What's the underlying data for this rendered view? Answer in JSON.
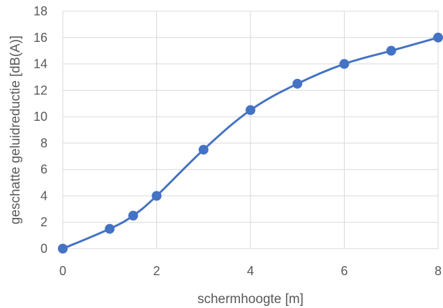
{
  "chart_data": {
    "type": "scatter",
    "title": "",
    "xlabel": "schermhoogte [m]",
    "ylabel": "geschatte geluidreductie [dB(A)]",
    "xlim": [
      0,
      8
    ],
    "ylim": [
      0,
      18
    ],
    "xticks": [
      "0",
      "2",
      "4",
      "6",
      "8"
    ],
    "yticks": [
      "0",
      "2",
      "4",
      "6",
      "8",
      "10",
      "12",
      "14",
      "16",
      "18"
    ],
    "grid": true,
    "legend": "none",
    "series": [
      {
        "x": [
          0,
          1,
          1.5,
          2,
          3,
          4,
          5,
          6,
          7,
          8
        ],
        "y": [
          0,
          1.5,
          2.5,
          4,
          7.5,
          10.5,
          12.5,
          14,
          15,
          16
        ],
        "line": "smooth",
        "marker": "circle",
        "color": "#4472C4"
      }
    ]
  }
}
